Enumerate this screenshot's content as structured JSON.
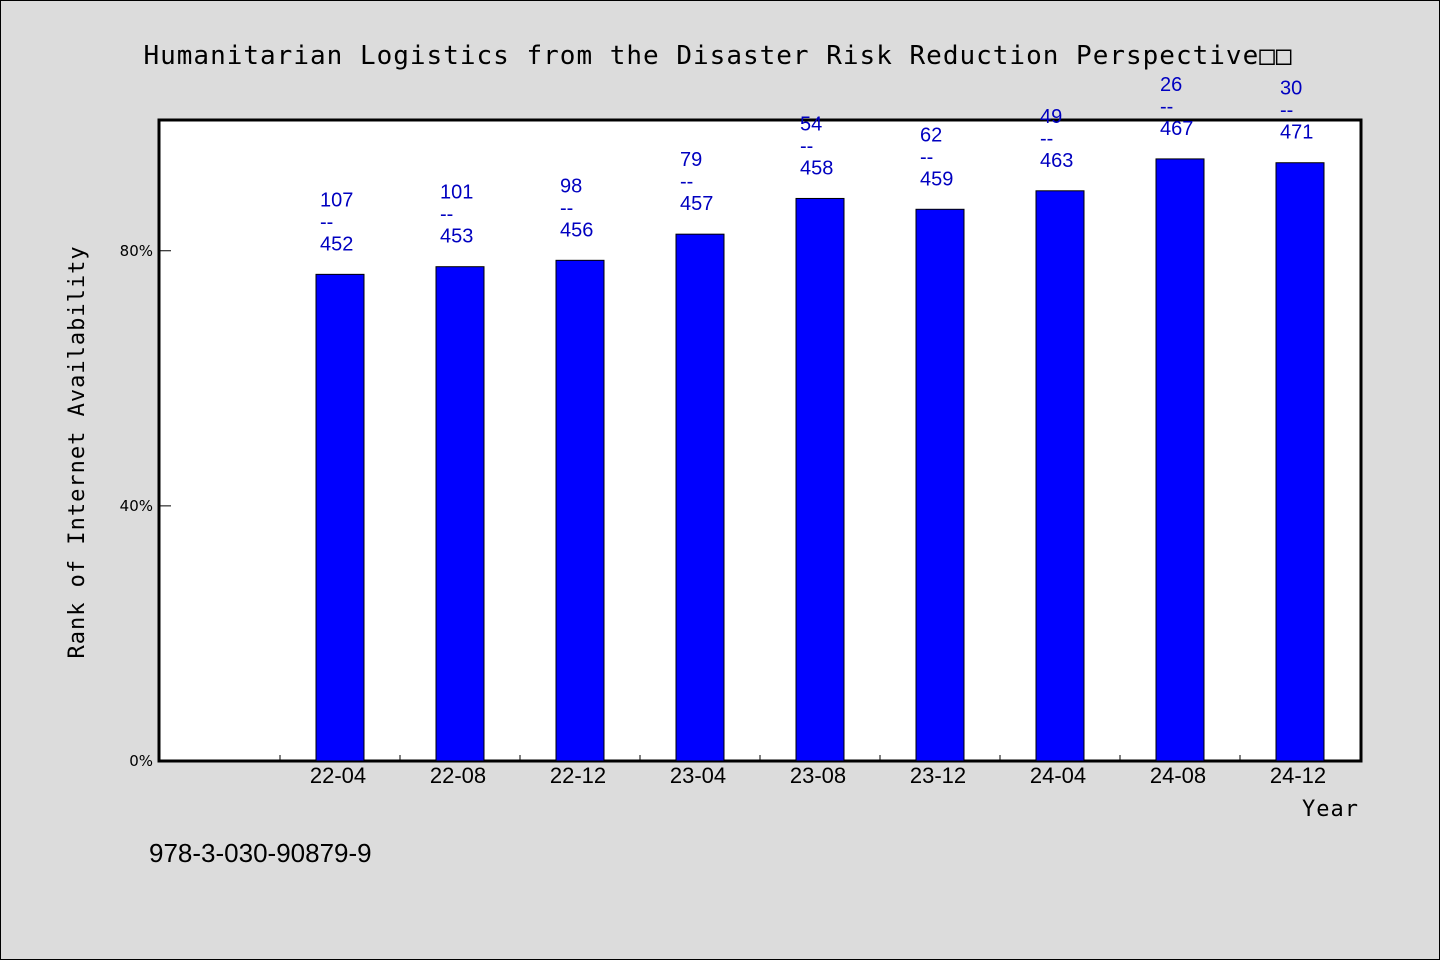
{
  "chart_data": {
    "type": "bar",
    "title": "Humanitarian Logistics from the Disaster Risk Reduction Perspective□□",
    "xlabel": "Year",
    "ylabel": "Rank of Internet Availability",
    "categories": [
      "22-04",
      "22-08",
      "22-12",
      "23-04",
      "23-08",
      "23-12",
      "24-04",
      "24-08",
      "24-12"
    ],
    "values": [
      76.3,
      77.5,
      78.5,
      82.6,
      88.2,
      86.5,
      89.4,
      94.4,
      93.8
    ],
    "data_labels": [
      {
        "rank": "107",
        "sep": "--",
        "total": "452"
      },
      {
        "rank": "101",
        "sep": "--",
        "total": "453"
      },
      {
        "rank": "98",
        "sep": "--",
        "total": "456"
      },
      {
        "rank": "79",
        "sep": "--",
        "total": "457"
      },
      {
        "rank": "54",
        "sep": "--",
        "total": "458"
      },
      {
        "rank": "62",
        "sep": "--",
        "total": "459"
      },
      {
        "rank": "49",
        "sep": "--",
        "total": "463"
      },
      {
        "rank": "26",
        "sep": "--",
        "total": "467"
      },
      {
        "rank": "30",
        "sep": "--",
        "total": "471"
      }
    ],
    "y_ticks": [
      {
        "value": 0,
        "label": "0%"
      },
      {
        "value": 40,
        "label": "40%"
      },
      {
        "value": 80,
        "label": "80%"
      }
    ],
    "ylim": [
      0,
      100.5
    ],
    "grid": false,
    "colors": {
      "bar": "#0000ff",
      "label": "#0000c0",
      "plot_bg": "#ffffff",
      "page_bg": "#dcdcdc"
    }
  },
  "footnote": "978-3-030-90879-9"
}
